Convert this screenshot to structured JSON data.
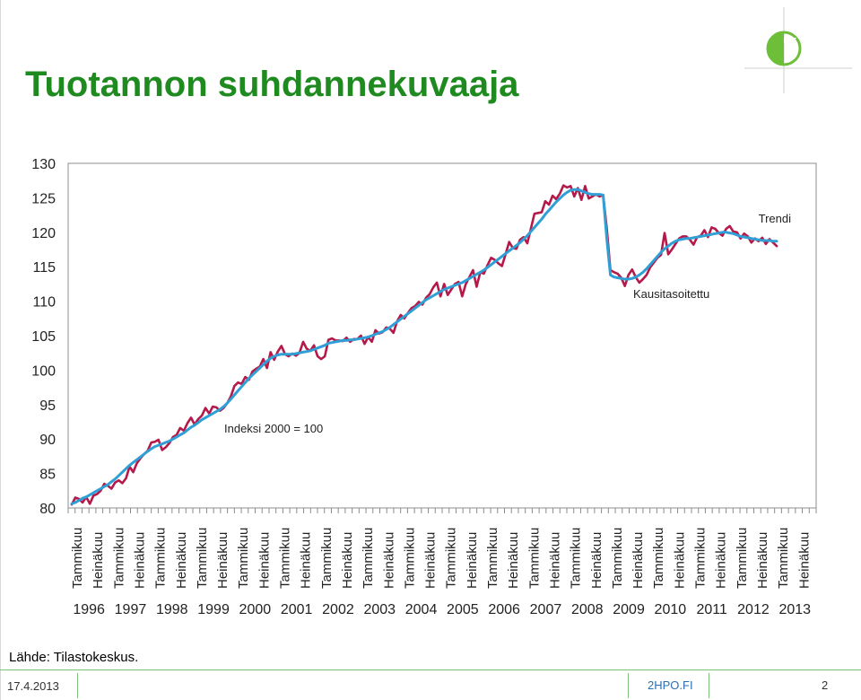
{
  "page": {
    "title": "Tuotannon suhdannekuvaaja",
    "source": "Lähde: Tilastokeskus.",
    "footer_date": "17.4.2013",
    "footer_site": "2HPO.FI",
    "page_number": "2"
  },
  "colors": {
    "title": "#1f8a1f",
    "seasonal": "#b5194a",
    "trend": "#2f9fd6",
    "logo": "#6dbf3a"
  },
  "chart_data": {
    "type": "line",
    "x_start_label": "Tammikuu 1996",
    "x_frequency": "monthly",
    "ylim": [
      80,
      130
    ],
    "yticks": [
      80,
      85,
      90,
      95,
      100,
      105,
      110,
      115,
      120,
      125,
      130
    ],
    "grid": false,
    "month_labels": [
      "Tammikuu",
      "Heinäkuu"
    ],
    "years": [
      "1996",
      "1997",
      "1998",
      "1999",
      "2000",
      "2001",
      "2002",
      "2003",
      "2004",
      "2005",
      "2006",
      "2007",
      "2008",
      "2009",
      "2010",
      "2011",
      "2012",
      "2013"
    ],
    "annotations": [
      {
        "text": "Indeksi 2000 = 100"
      },
      {
        "text": "Kausitasoitettu"
      },
      {
        "text": "Trendi"
      }
    ],
    "series": [
      {
        "name": "Kausitasoitettu",
        "values": [
          80.5,
          81.5,
          81.3,
          80.8,
          81.6,
          80.6,
          81.8,
          82.0,
          82.5,
          83.5,
          83.2,
          82.8,
          83.7,
          84.0,
          83.6,
          84.3,
          86.0,
          85.2,
          86.5,
          87.2,
          87.8,
          88.3,
          89.5,
          89.6,
          89.9,
          88.4,
          88.8,
          89.4,
          90.3,
          90.6,
          91.6,
          91.2,
          92.3,
          93.1,
          92.1,
          92.9,
          93.4,
          94.5,
          93.7,
          94.7,
          94.6,
          94.1,
          94.5,
          95.2,
          96.2,
          97.7,
          98.2,
          98.0,
          99.0,
          98.6,
          99.8,
          100.2,
          100.5,
          101.6,
          100.3,
          102.6,
          101.5,
          102.7,
          103.5,
          102.3,
          102.0,
          102.4,
          102.1,
          102.5,
          104.1,
          103.1,
          102.8,
          103.6,
          102.0,
          101.6,
          102.0,
          104.4,
          104.6,
          104.3,
          104.3,
          104.2,
          104.7,
          104.1,
          104.5,
          104.5,
          105.0,
          103.8,
          104.8,
          104.1,
          105.8,
          105.3,
          105.5,
          106.2,
          106.0,
          105.4,
          107.1,
          108.0,
          107.5,
          108.3,
          109.0,
          109.3,
          109.9,
          109.5,
          110.5,
          111.0,
          112.0,
          112.7,
          110.7,
          112.5,
          110.9,
          111.7,
          112.5,
          112.8,
          110.7,
          112.5,
          113.5,
          114.5,
          112.1,
          114.2,
          114.0,
          115.2,
          116.3,
          116.0,
          115.5,
          115.1,
          116.8,
          118.6,
          117.7,
          117.6,
          118.9,
          119.3,
          118.4,
          120.5,
          122.7,
          122.8,
          122.9,
          124.5,
          124.0,
          125.3,
          124.8,
          125.6,
          126.8,
          126.5,
          126.7,
          125.2,
          126.4,
          124.7,
          126.7,
          124.9,
          125.2,
          125.5,
          125.2,
          125.4,
          120.5,
          114.5,
          114.2,
          114.0,
          113.4,
          112.2,
          113.8,
          114.6,
          113.5,
          112.7,
          113.2,
          113.8,
          114.9,
          115.6,
          116.3,
          116.7,
          119.9,
          116.8,
          117.5,
          118.3,
          119.1,
          119.4,
          119.4,
          118.9,
          118.2,
          119.3,
          119.5,
          120.3,
          119.3,
          120.7,
          120.5,
          119.9,
          119.5,
          120.5,
          120.9,
          120.1,
          120.0,
          119.1,
          119.8,
          119.4,
          118.5,
          119.1,
          118.7,
          119.2,
          118.3,
          119.0,
          118.5,
          118.0
        ]
      },
      {
        "name": "Trendi",
        "values": [
          80.6,
          80.8,
          81.1,
          81.4,
          81.6,
          81.9,
          82.2,
          82.5,
          82.8,
          83.1,
          83.4,
          83.8,
          84.2,
          84.7,
          85.2,
          85.7,
          86.2,
          86.6,
          87.0,
          87.4,
          87.8,
          88.2,
          88.6,
          88.9,
          89.1,
          89.3,
          89.5,
          89.7,
          90.0,
          90.3,
          90.6,
          90.9,
          91.3,
          91.7,
          92.0,
          92.4,
          92.8,
          93.1,
          93.4,
          93.7,
          94.0,
          94.3,
          94.7,
          95.2,
          95.8,
          96.4,
          97.0,
          97.6,
          98.2,
          98.8,
          99.3,
          99.8,
          100.3,
          100.8,
          101.3,
          101.7,
          102.0,
          102.2,
          102.3,
          102.3,
          102.3,
          102.3,
          102.4,
          102.5,
          102.6,
          102.7,
          102.8,
          103.0,
          103.2,
          103.4,
          103.6,
          103.9,
          104.0,
          104.1,
          104.2,
          104.3,
          104.3,
          104.4,
          104.4,
          104.5,
          104.6,
          104.7,
          104.8,
          105.0,
          105.2,
          105.4,
          105.6,
          105.9,
          106.2,
          106.6,
          107.0,
          107.4,
          107.8,
          108.2,
          108.6,
          109.0,
          109.4,
          109.8,
          110.2,
          110.5,
          110.8,
          111.1,
          111.4,
          111.7,
          111.9,
          112.1,
          112.3,
          112.5,
          112.7,
          113.0,
          113.3,
          113.6,
          113.9,
          114.2,
          114.5,
          114.9,
          115.3,
          115.7,
          116.1,
          116.5,
          116.9,
          117.3,
          117.7,
          118.1,
          118.5,
          119.0,
          119.5,
          120.1,
          120.7,
          121.3,
          121.9,
          122.6,
          123.2,
          123.8,
          124.4,
          124.9,
          125.4,
          125.8,
          126.1,
          126.2,
          126.2,
          126.0,
          125.8,
          125.6,
          125.5,
          125.5,
          125.5,
          125.4,
          119.0,
          113.8,
          113.5,
          113.4,
          113.3,
          113.2,
          113.2,
          113.3,
          113.5,
          113.8,
          114.2,
          114.7,
          115.3,
          115.9,
          116.5,
          117.1,
          117.6,
          118.0,
          118.4,
          118.7,
          118.9,
          119.0,
          119.1,
          119.1,
          119.2,
          119.3,
          119.4,
          119.5,
          119.6,
          119.7,
          119.8,
          119.9,
          120.0,
          120.0,
          119.9,
          119.8,
          119.6,
          119.4,
          119.3,
          119.2,
          119.1,
          119.0,
          118.9,
          118.8,
          118.8,
          118.8,
          118.7,
          118.7
        ]
      }
    ]
  }
}
